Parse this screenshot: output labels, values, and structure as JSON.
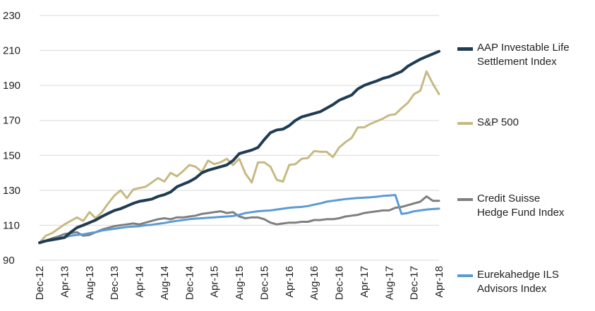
{
  "chart_data": {
    "type": "line",
    "title": "",
    "xlabel": "",
    "ylabel": "",
    "ylim": [
      90,
      230
    ],
    "yticks": [
      90,
      110,
      130,
      150,
      170,
      190,
      210,
      230
    ],
    "grid": "horizontal",
    "legend_position": "right",
    "x_ticks": [
      "Dec-12",
      "Apr-13",
      "Aug-13",
      "Dec-13",
      "Apr-14",
      "Aug-14",
      "Dec-14",
      "Apr-15",
      "Aug-15",
      "Dec-15",
      "Apr-16",
      "Aug-16",
      "Dec-16",
      "Apr-17",
      "Aug-17",
      "Dec-17",
      "Apr-18"
    ],
    "x": [
      "Dec-12",
      "Jan-13",
      "Feb-13",
      "Mar-13",
      "Apr-13",
      "May-13",
      "Jun-13",
      "Jul-13",
      "Aug-13",
      "Sep-13",
      "Oct-13",
      "Nov-13",
      "Dec-13",
      "Jan-14",
      "Feb-14",
      "Mar-14",
      "Apr-14",
      "May-14",
      "Jun-14",
      "Jul-14",
      "Aug-14",
      "Sep-14",
      "Oct-14",
      "Nov-14",
      "Dec-14",
      "Jan-15",
      "Feb-15",
      "Mar-15",
      "Apr-15",
      "May-15",
      "Jun-15",
      "Jul-15",
      "Aug-15",
      "Sep-15",
      "Oct-15",
      "Nov-15",
      "Dec-15",
      "Jan-16",
      "Feb-16",
      "Mar-16",
      "Apr-16",
      "May-16",
      "Jun-16",
      "Jul-16",
      "Aug-16",
      "Sep-16",
      "Oct-16",
      "Nov-16",
      "Dec-16",
      "Jan-17",
      "Feb-17",
      "Mar-17",
      "Apr-17",
      "May-17",
      "Jun-17",
      "Jul-17",
      "Aug-17",
      "Sep-17",
      "Oct-17",
      "Nov-17",
      "Dec-17",
      "Jan-18",
      "Feb-18",
      "Mar-18",
      "Apr-18"
    ],
    "series": [
      {
        "name": "AAP Investable Life Settlement Index",
        "color": "#1f3c52",
        "values": [
          100,
          101,
          101.7,
          102.3,
          103,
          106,
          108.7,
          110,
          111.5,
          113,
          115,
          116.8,
          118.5,
          119.5,
          121,
          122.5,
          123.7,
          124.3,
          125,
          126.5,
          127.5,
          129,
          132,
          133.5,
          135,
          137,
          140,
          141.5,
          142.5,
          143.5,
          144.5,
          147,
          151,
          152,
          153,
          154.5,
          159,
          163,
          164.5,
          165,
          167,
          170,
          172,
          173,
          174,
          175,
          177,
          179,
          181.5,
          183,
          184.5,
          188,
          190,
          191.3,
          192.5,
          194,
          195,
          196.5,
          198,
          201,
          203,
          205,
          206.5,
          208,
          209.5
        ]
      },
      {
        "name": "S&P 500",
        "color": "#c7b983",
        "values": [
          100,
          104,
          105.5,
          108,
          110.5,
          112.5,
          114.5,
          112.5,
          117.5,
          114,
          117.5,
          122.5,
          127,
          130,
          125.5,
          130.5,
          131.3,
          132,
          134.5,
          137,
          135,
          140,
          138,
          141,
          144.5,
          143.5,
          140.5,
          147,
          145,
          146,
          148,
          144.5,
          148,
          139.5,
          134.5,
          146,
          146,
          143.5,
          136,
          135,
          144.5,
          145,
          148,
          148.5,
          152.5,
          152,
          152,
          149,
          154.5,
          157.5,
          160,
          166,
          166,
          168,
          169.5,
          171,
          173,
          173.5,
          177,
          180,
          185,
          187,
          198,
          191,
          185
        ]
      },
      {
        "name": "Credit Suisse Hedge Fund Index",
        "color": "#7f7f7f",
        "values": [
          100,
          101.3,
          102.5,
          103.5,
          105,
          105.5,
          106,
          104,
          104.5,
          106,
          107.5,
          108.5,
          109.5,
          110,
          110.5,
          111,
          110.5,
          111.5,
          112.5,
          113.5,
          114,
          113.5,
          114.5,
          114.5,
          115,
          115.5,
          116.5,
          117,
          117.5,
          118,
          117,
          117.5,
          115,
          114,
          114.5,
          114.5,
          113.5,
          111.5,
          110.5,
          111,
          111.5,
          111.5,
          112,
          112,
          113,
          113,
          113.5,
          113.5,
          114,
          115,
          115.5,
          116,
          117,
          117.5,
          118,
          118.5,
          118.5,
          120,
          120.5,
          121.5,
          122.5,
          123.5,
          126.5,
          124,
          124
        ]
      },
      {
        "name": "Eurekahedge ILS Advisors Index",
        "color": "#5b9bd5",
        "values": [
          100,
          101,
          101.8,
          102.5,
          103.2,
          104,
          104.5,
          104.8,
          105.5,
          106,
          107,
          107.5,
          108,
          108.5,
          109,
          109.3,
          109.5,
          110,
          110.3,
          110.8,
          111.3,
          112,
          112.5,
          113,
          113.5,
          113.8,
          114,
          114.3,
          114.5,
          114.8,
          115,
          115.3,
          116,
          117,
          117.5,
          118,
          118.3,
          118.5,
          119,
          119.5,
          120,
          120.3,
          120.5,
          121,
          121.8,
          122.5,
          123.5,
          124,
          124.5,
          125,
          125.3,
          125.6,
          125.8,
          126,
          126.3,
          126.8,
          127,
          127.3,
          116.5,
          117,
          118,
          118.5,
          119,
          119.3,
          119.5
        ]
      }
    ]
  },
  "legend": [
    {
      "label": "AAP Investable Life\nSettlement Index",
      "color": "#1f3c52"
    },
    {
      "label": "S&P 500",
      "color": "#c7b983"
    },
    {
      "label": "Credit Suisse\nHedge Fund Index",
      "color": "#7f7f7f"
    },
    {
      "label": "Eurekahedge ILS\nAdvisors Index",
      "color": "#5b9bd5"
    }
  ]
}
